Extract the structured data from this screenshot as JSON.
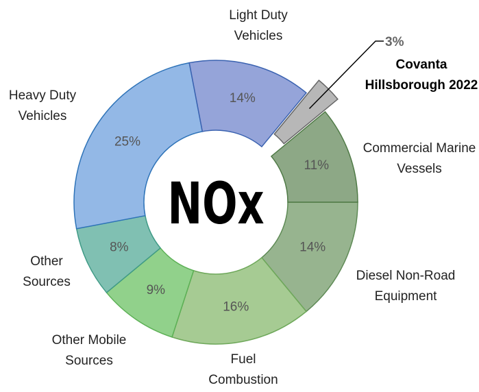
{
  "chart_data": {
    "type": "donut",
    "title": "NOx",
    "categories": [
      "Diesel Non-Road Equipment",
      "Fuel Combustion",
      "Other Mobile Sources",
      "Other Sources",
      "Heavy Duty Vehicles",
      "Light Duty Vehicles",
      "Covanta Hillsborough 2022",
      "Commercial Marine Vessels"
    ],
    "values": [
      14,
      16,
      9,
      8,
      25,
      14,
      3,
      11
    ],
    "value_labels": [
      "14%",
      "16%",
      "9%",
      "8%",
      "25%",
      "14%",
      "3%",
      "11%"
    ],
    "colors": [
      "#97b48f",
      "#a6cb93",
      "#91d18b",
      "#80c0b2",
      "#93b8e6",
      "#95a4d9",
      "#b7b7b7",
      "#8da886"
    ]
  }
}
